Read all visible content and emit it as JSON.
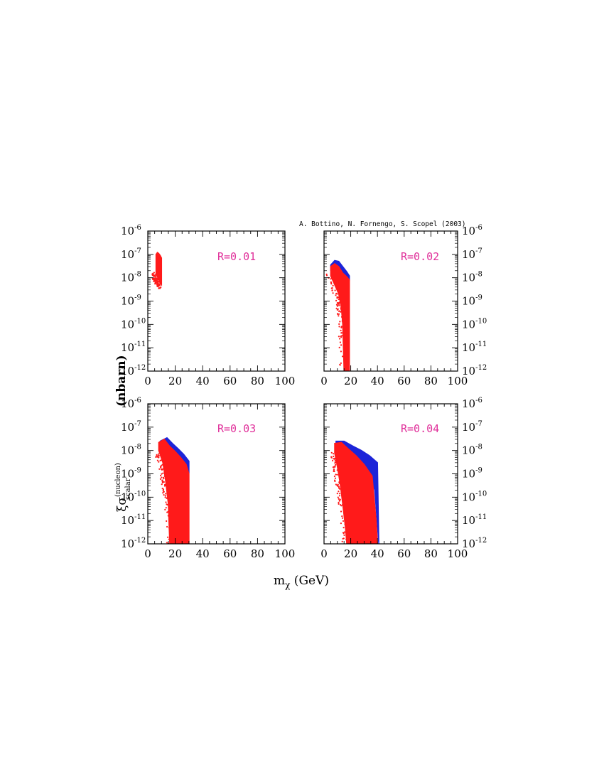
{
  "credit": "A. Bottino, N. Fornengo, S. Scopel (2003)",
  "xlabel": {
    "main": "m",
    "sub": "χ",
    "unit": " (GeV)"
  },
  "ylabel": {
    "prefix": "ξσ",
    "sup": "(nucleon)",
    "sub": "scalar",
    "unit": "(nbarn)"
  },
  "colors": {
    "blue": "#1c24d8",
    "red": "#ff1a1a",
    "label": "#e0309a"
  },
  "axes": {
    "xlim": [
      0,
      100
    ],
    "x_ticks": [
      "0",
      "20",
      "40",
      "60",
      "80",
      "100"
    ],
    "yscale": "log",
    "ylim_exp": [
      -12,
      -6
    ],
    "y_tick_labels": [
      {
        "base": "10",
        "exp": "-6"
      },
      {
        "base": "10",
        "exp": "-7"
      },
      {
        "base": "10",
        "exp": "-8"
      },
      {
        "base": "10",
        "exp": "-9"
      },
      {
        "base": "10",
        "exp": "-10"
      },
      {
        "base": "10",
        "exp": "-11"
      },
      {
        "base": "10",
        "exp": "-12"
      }
    ]
  },
  "chart_data": [
    {
      "type": "scatter",
      "label": "R=0.01",
      "xlim": [
        0,
        100
      ],
      "ylim": [
        1e-12,
        1e-06
      ],
      "yscale": "log",
      "series": [
        {
          "color": "red",
          "upper_boundary": [
            [
              6,
              1e-07
            ],
            [
              7,
              1.2e-07
            ],
            [
              8,
              1.1e-07
            ],
            [
              9,
              9e-08
            ],
            [
              10,
              7e-08
            ]
          ],
          "lower_boundary": [
            [
              6,
              1.5e-08
            ],
            [
              7,
              1.1e-08
            ],
            [
              8,
              8e-09
            ],
            [
              9,
              6e-09
            ],
            [
              10,
              5e-09
            ]
          ],
          "extent": "single compact cluster"
        }
      ]
    },
    {
      "type": "scatter",
      "label": "R=0.02",
      "xlim": [
        0,
        100
      ],
      "ylim": [
        1e-12,
        1e-06
      ],
      "yscale": "log",
      "series": [
        {
          "color": "blue",
          "upper_boundary": [
            [
              5,
              3.5e-08
            ],
            [
              8,
              5.5e-08
            ],
            [
              11,
              5e-08
            ],
            [
              14,
              3e-08
            ],
            [
              17,
              1.8e-08
            ],
            [
              19,
              1.2e-08
            ]
          ],
          "lower_boundary": [
            [
              5,
              2.2e-08
            ],
            [
              8,
              3.2e-08
            ],
            [
              11,
              2.6e-08
            ],
            [
              14,
              1.6e-08
            ],
            [
              17,
              1e-08
            ],
            [
              19,
              8e-09
            ]
          ]
        },
        {
          "color": "red",
          "upper_boundary": [
            [
              5,
              3e-08
            ],
            [
              8,
              4e-08
            ],
            [
              11,
              3e-08
            ],
            [
              14,
              1.6e-08
            ],
            [
              17,
              1.1e-08
            ],
            [
              19,
              8e-09
            ],
            [
              19,
              1e-12
            ]
          ],
          "lower_boundary": [
            [
              5,
              1.2e-08
            ],
            [
              8,
              5e-09
            ],
            [
              11,
              2e-09
            ],
            [
              13,
              5e-10
            ],
            [
              14,
              1e-10
            ],
            [
              15,
              1e-12
            ]
          ]
        }
      ]
    },
    {
      "type": "scatter",
      "label": "R=0.03",
      "xlim": [
        0,
        100
      ],
      "ylim": [
        1e-12,
        1e-06
      ],
      "yscale": "log",
      "series": [
        {
          "color": "blue",
          "upper_boundary": [
            [
              9,
              2.5e-08
            ],
            [
              14,
              3.5e-08
            ],
            [
              18,
              2e-08
            ],
            [
              22,
              1.2e-08
            ],
            [
              26,
              7e-09
            ],
            [
              30,
              3.5e-09
            ]
          ],
          "lower_boundary": [
            [
              9,
              1.5e-08
            ],
            [
              14,
              1.5e-08
            ],
            [
              18,
              8e-09
            ],
            [
              22,
              4.5e-09
            ],
            [
              26,
              2.5e-09
            ],
            [
              30,
              1.2e-09
            ]
          ]
        },
        {
          "color": "red",
          "upper_boundary": [
            [
              8,
              2.2e-08
            ],
            [
              12,
              3e-08
            ],
            [
              16,
              1.5e-08
            ],
            [
              20,
              9e-09
            ],
            [
              24,
              5e-09
            ],
            [
              28,
              2.5e-09
            ],
            [
              30,
              1e-09
            ],
            [
              30,
              1e-12
            ]
          ],
          "lower_boundary": [
            [
              8,
              1e-08
            ],
            [
              11,
              3e-09
            ],
            [
              13,
              5e-10
            ],
            [
              15,
              5e-11
            ],
            [
              16,
              1e-12
            ]
          ]
        }
      ]
    },
    {
      "type": "scatter",
      "label": "R=0.04",
      "xlim": [
        0,
        100
      ],
      "ylim": [
        1e-12,
        1e-06
      ],
      "yscale": "log",
      "series": [
        {
          "color": "blue",
          "upper_boundary": [
            [
              9,
              2.5e-08
            ],
            [
              15,
              2.5e-08
            ],
            [
              22,
              1.5e-08
            ],
            [
              28,
              1e-08
            ],
            [
              34,
              6e-09
            ],
            [
              40,
              3e-09
            ],
            [
              41,
              1e-12
            ]
          ],
          "lower_boundary": [
            [
              9,
              1.2e-08
            ],
            [
              15,
              1e-08
            ],
            [
              22,
              5e-09
            ],
            [
              28,
              2.5e-09
            ],
            [
              34,
              1e-09
            ],
            [
              38,
              2e-10
            ]
          ]
        },
        {
          "color": "red",
          "upper_boundary": [
            [
              8,
              2e-08
            ],
            [
              13,
              2.2e-08
            ],
            [
              18,
              1.2e-08
            ],
            [
              24,
              6e-09
            ],
            [
              30,
              2.5e-09
            ],
            [
              36,
              8e-10
            ],
            [
              39,
              1e-11
            ],
            [
              40,
              1e-12
            ]
          ],
          "lower_boundary": [
            [
              8,
              8e-09
            ],
            [
              10,
              2e-09
            ],
            [
              12,
              4e-10
            ],
            [
              14,
              5e-11
            ],
            [
              16,
              5e-12
            ],
            [
              17,
              1e-12
            ]
          ]
        }
      ]
    }
  ]
}
